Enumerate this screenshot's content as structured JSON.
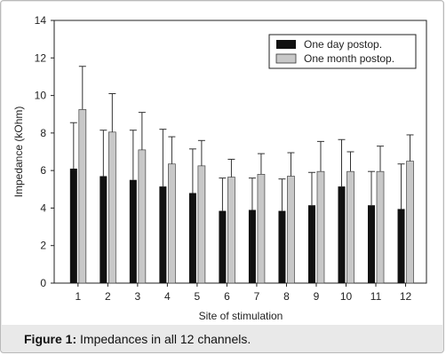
{
  "chart_data": {
    "type": "bar",
    "title": "",
    "xlabel": "Site of stimulation",
    "ylabel": "Impedance (kOhm)",
    "ylim": [
      0,
      14
    ],
    "yticks": [
      "0",
      "2",
      "4",
      "6",
      "8",
      "10",
      "12",
      "14"
    ],
    "categories": [
      "1",
      "2",
      "3",
      "4",
      "5",
      "6",
      "7",
      "8",
      "9",
      "10",
      "11",
      "12"
    ],
    "series": [
      {
        "name": "One day postop.",
        "color": "#111111",
        "values": [
          6.1,
          5.7,
          5.5,
          5.15,
          4.8,
          3.85,
          3.9,
          3.85,
          4.15,
          5.15,
          4.15,
          3.95
        ],
        "error": [
          2.45,
          2.45,
          2.65,
          3.05,
          2.35,
          1.75,
          1.7,
          1.7,
          1.75,
          2.5,
          1.8,
          2.4
        ]
      },
      {
        "name": "One month postop.",
        "color": "#c8c8c8",
        "values": [
          9.25,
          8.05,
          7.1,
          6.35,
          6.25,
          5.65,
          5.8,
          5.7,
          5.95,
          5.95,
          5.95,
          6.5
        ],
        "error": [
          2.3,
          2.05,
          2.0,
          1.45,
          1.35,
          0.95,
          1.1,
          1.25,
          1.6,
          1.05,
          1.35,
          1.4
        ]
      }
    ],
    "legend": "top-right",
    "grid": false
  },
  "caption": {
    "label": "Figure 1:",
    "text": " Impedances in all 12 channels."
  }
}
